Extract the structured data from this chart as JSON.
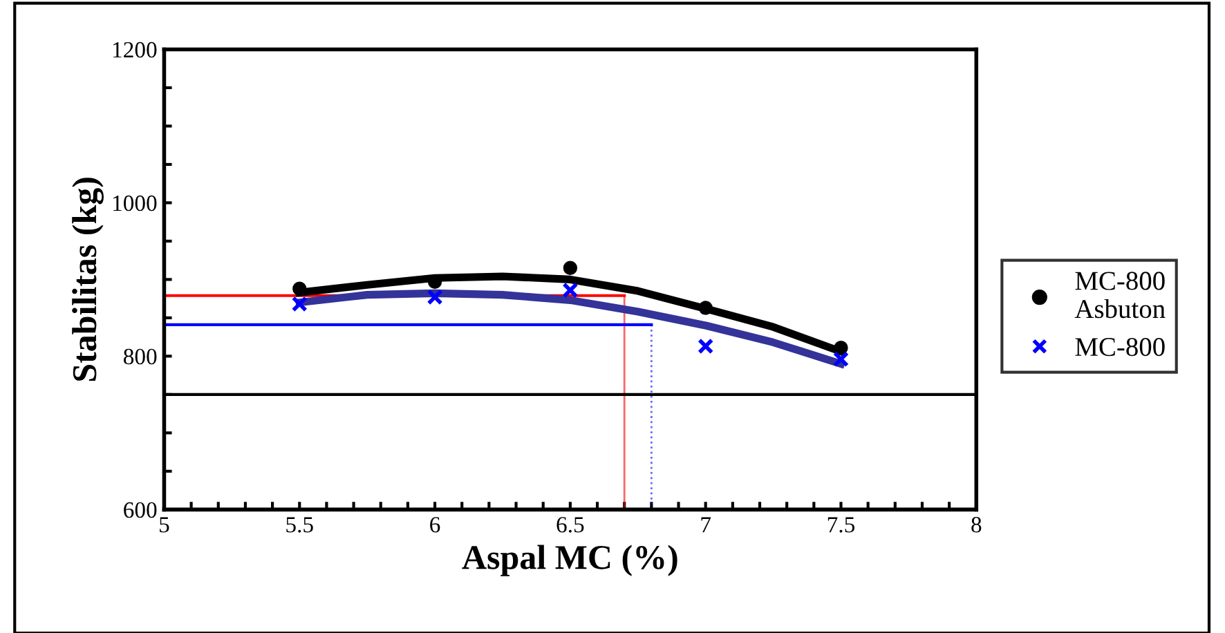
{
  "chart_data": {
    "type": "scatter",
    "xlabel": "Aspal MC (%)",
    "ylabel": "Stabilitas (kg)",
    "xlim": [
      5,
      8
    ],
    "ylim": [
      600,
      1200
    ],
    "xticks": [
      5,
      {
        "value": 5.1,
        "label": null
      },
      {
        "value": 5.2,
        "label": null
      },
      {
        "value": 5.3,
        "label": null
      },
      {
        "value": 5.4,
        "label": null
      },
      5.5,
      {
        "value": 5.6,
        "label": null
      },
      {
        "value": 5.7,
        "label": null
      },
      {
        "value": 5.8,
        "label": null
      },
      {
        "value": 5.9,
        "label": null
      },
      6,
      {
        "value": 6.1,
        "label": null
      },
      {
        "value": 6.2,
        "label": null
      },
      {
        "value": 6.3,
        "label": null
      },
      {
        "value": 6.4,
        "label": null
      },
      6.5,
      {
        "value": 6.6,
        "label": null
      },
      {
        "value": 6.7,
        "label": null
      },
      {
        "value": 6.8,
        "label": null
      },
      {
        "value": 6.9,
        "label": null
      },
      7,
      {
        "value": 7.1,
        "label": null
      },
      {
        "value": 7.2,
        "label": null
      },
      {
        "value": 7.3,
        "label": null
      },
      {
        "value": 7.4,
        "label": null
      },
      7.5,
      {
        "value": 7.6,
        "label": null
      },
      {
        "value": 7.7,
        "label": null
      },
      {
        "value": 7.8,
        "label": null
      },
      {
        "value": 7.9,
        "label": null
      },
      8
    ],
    "yticks": [
      600,
      {
        "value": 650,
        "label": null
      },
      {
        "value": 700,
        "label": null
      },
      {
        "value": 750,
        "label": null
      },
      800,
      {
        "value": 850,
        "label": null
      },
      {
        "value": 900,
        "label": null
      },
      {
        "value": 950,
        "label": null
      },
      1000,
      {
        "value": 1050,
        "label": null
      },
      {
        "value": 1100,
        "label": null
      },
      {
        "value": 1150,
        "label": null
      },
      1200
    ],
    "grid": false,
    "legend": "right",
    "series": [
      {
        "name": "MC-800 Asbuton",
        "marker": "circle",
        "color": "#000000",
        "x": [
          5.5,
          6,
          6.5,
          7,
          7.5
        ],
        "values": [
          888,
          897,
          915,
          863,
          811
        ]
      },
      {
        "name": "MC-800",
        "marker": "cross",
        "color": "#0000ff",
        "x": [
          5.5,
          6,
          6.5,
          7,
          7.5
        ],
        "values": [
          868,
          877,
          886,
          813,
          796
        ]
      },
      {
        "type": "line",
        "color": "#000000",
        "x": [
          5.5,
          5.75,
          6,
          6.25,
          6.5,
          6.75,
          7,
          7.25,
          7.5
        ],
        "values": [
          883,
          893,
          902,
          904,
          900,
          885,
          862,
          838,
          806
        ]
      },
      {
        "type": "line",
        "color": "#333399",
        "x": [
          5.5,
          5.75,
          6,
          6.25,
          6.5,
          6.75,
          7,
          7.25,
          7.5
        ],
        "values": [
          870,
          880,
          882,
          880,
          873,
          858,
          840,
          818,
          790
        ]
      }
    ],
    "ref_lines": [
      {
        "axis": "y",
        "value": 879,
        "color": "#ff0000",
        "line_style": "solid"
      },
      {
        "axis": "x",
        "value": 6.7,
        "color": "#ff0000",
        "line_style": "solid"
      },
      {
        "axis": "y",
        "value": 841,
        "color": "#0000ff",
        "line_style": "solid"
      },
      {
        "axis": "x",
        "value": 6.8,
        "color": "#0000ff",
        "line_style": "dotted"
      },
      {
        "axis": "y",
        "value": 750,
        "color": "#000000",
        "line_style": "solid"
      }
    ]
  }
}
